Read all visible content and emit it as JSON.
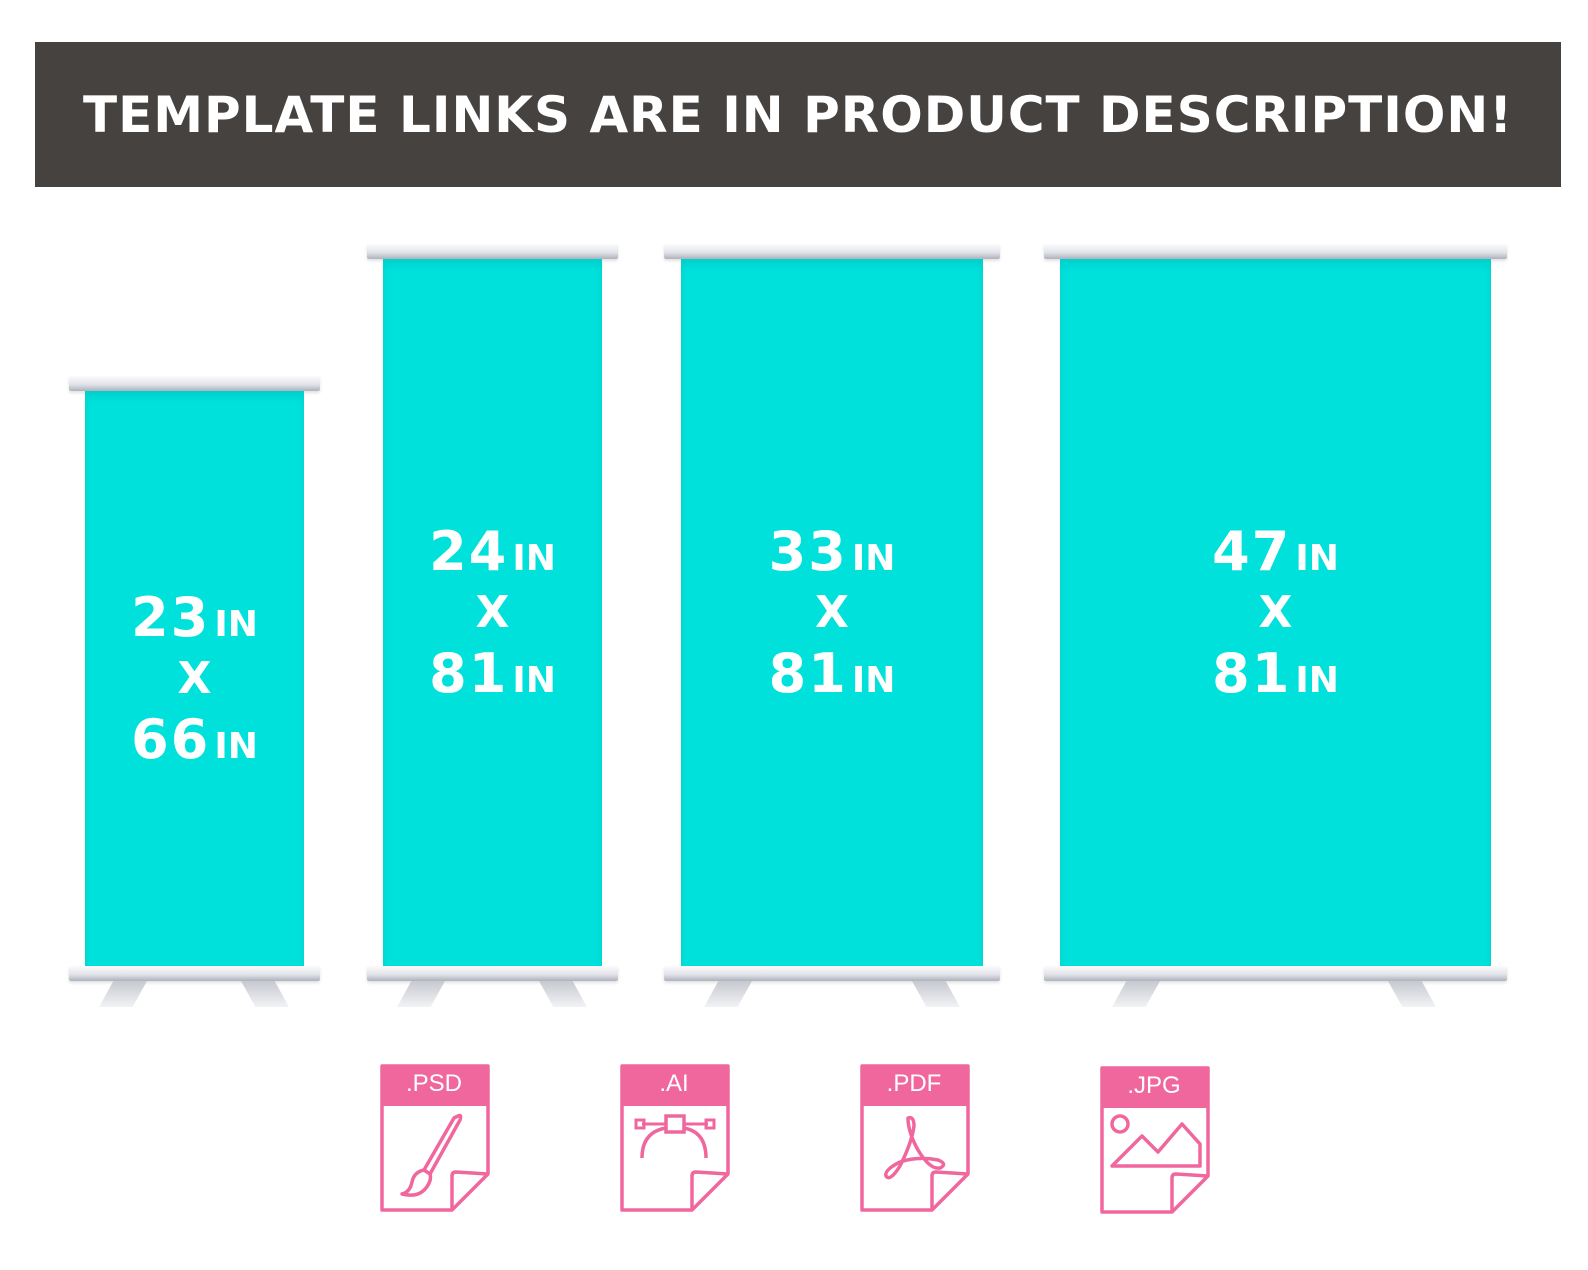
{
  "header": {
    "text": "TEMPLATE LINKS ARE IN PRODUCT DESCRIPTION!"
  },
  "banners": [
    {
      "width": "23",
      "height": "66",
      "unit": "IN",
      "separator": "X"
    },
    {
      "width": "24",
      "height": "81",
      "unit": "IN",
      "separator": "X"
    },
    {
      "width": "33",
      "height": "81",
      "unit": "IN",
      "separator": "X"
    },
    {
      "width": "47",
      "height": "81",
      "unit": "IN",
      "separator": "X"
    }
  ],
  "file_types": [
    {
      "label": ".PSD",
      "icon": "paintbrush-icon"
    },
    {
      "label": ".AI",
      "icon": "bezier-curve-icon"
    },
    {
      "label": ".PDF",
      "icon": "acrobat-icon"
    },
    {
      "label": ".JPG",
      "icon": "image-icon"
    }
  ],
  "colors": {
    "header_bg": "#464240",
    "banner_fill": "#00e1dc",
    "icon_accent": "#f0679e"
  }
}
